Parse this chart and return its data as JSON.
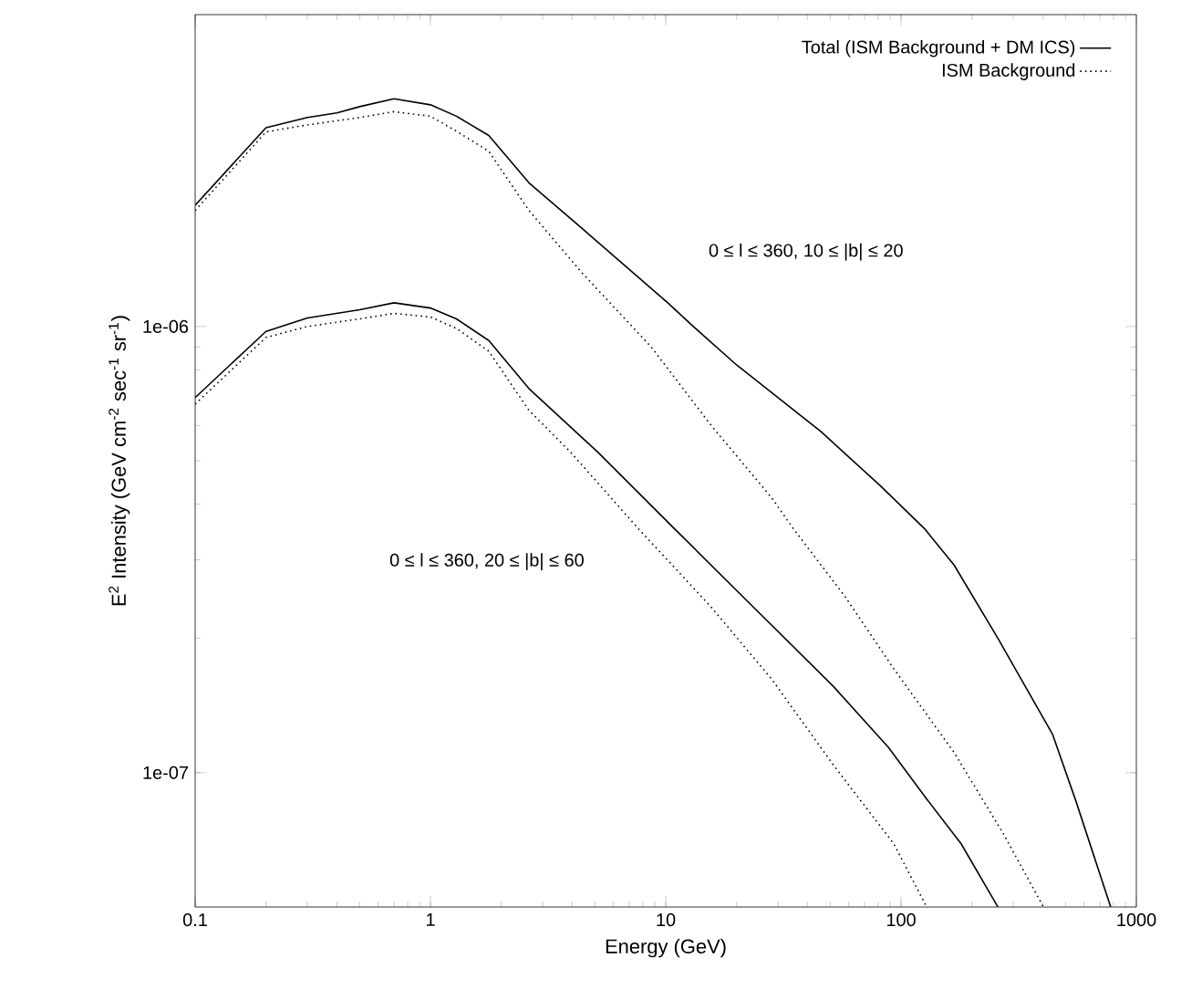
{
  "chart_data": {
    "type": "line",
    "xlabel": "Energy (GeV)",
    "ylabel": "E$^{2}$ Intensity (GeV cm$^{-2}$ sec$^{-1}$ sr$^{-1}$)",
    "log": "xy",
    "xlim": [
      0.1,
      1000
    ],
    "ylim": [
      5e-08,
      5e-06
    ],
    "xticks": [
      0.1,
      1,
      10,
      100,
      1000
    ],
    "yticks": [
      {
        "value": 1e-07,
        "label": "1e-07"
      },
      {
        "value": 1e-06,
        "label": "1e-06"
      }
    ],
    "legend": "top right",
    "grid": false,
    "marker": "none",
    "annotations": [
      "0 ≤ l ≤ 360, 10 ≤ |b| ≤ 20",
      "0 ≤ l ≤ 360, 20 ≤ |b| ≤ 60"
    ],
    "series": [
      {
        "name": "Total (ISM Background + DM ICS)",
        "color": "#000000",
        "line_style": "solid",
        "x": [
          0.1,
          0.2,
          0.3,
          0.4,
          0.5,
          0.7,
          1,
          1.29,
          1.77,
          2.62,
          4.4,
          10.2,
          13.1,
          20,
          45.6,
          82.2,
          126,
          168,
          258,
          440,
          555,
          778
        ],
        "values": [
          1.87e-06,
          2.79e-06,
          2.94e-06,
          3.01e-06,
          3.11e-06,
          3.24e-06,
          3.14e-06,
          2.96e-06,
          2.68e-06,
          2.1e-06,
          1.66e-06,
          1.13e-06,
          1e-06,
          8.2e-07,
          5.82e-07,
          4.38e-07,
          3.52e-07,
          2.92e-07,
          2e-07,
          1.22e-07,
          8.6e-08,
          5e-08
        ]
      },
      {
        "name": "ISM Background",
        "color": "#000000",
        "line_style": "dotted",
        "x": [
          0.1,
          0.2,
          0.3,
          0.5,
          0.7,
          1,
          1.29,
          1.77,
          2.62,
          4.4,
          8.67,
          15.6,
          28.2,
          34.9,
          57.5,
          93.1,
          168,
          272,
          403
        ],
        "values": [
          1.82e-06,
          2.73e-06,
          2.83e-06,
          2.94e-06,
          3.03e-06,
          2.96e-06,
          2.74e-06,
          2.47e-06,
          1.82e-06,
          1.32e-06,
          9e-07,
          6e-07,
          4.13e-07,
          3.52e-07,
          2.49e-07,
          1.71e-07,
          1.11e-07,
          7.3e-08,
          5e-08
        ]
      },
      {
        "color": "#000000",
        "line_style": "solid",
        "x": [
          0.1,
          0.2,
          0.3,
          0.5,
          0.7,
          1,
          1.29,
          1.77,
          2.62,
          5.16,
          10.9,
          28.2,
          51.6,
          88.3,
          126,
          180,
          258
        ],
        "values": [
          6.93e-07,
          9.75e-07,
          1.045e-06,
          1.09e-06,
          1.13e-06,
          1.1e-06,
          1.04e-06,
          9.3e-07,
          7.26e-07,
          5.22e-07,
          3.52e-07,
          2.14e-07,
          1.56e-07,
          1.14e-07,
          8.85e-08,
          6.93e-08,
          5e-08
        ]
      },
      {
        "color": "#000000",
        "line_style": "dotted",
        "x": [
          0.1,
          0.2,
          0.3,
          0.5,
          0.7,
          1,
          1.29,
          1.77,
          2.62,
          3.95,
          7.66,
          15.6,
          28.2,
          51.6,
          93.1,
          128.5
        ],
        "values": [
          6.7e-07,
          9.45e-07,
          1e-06,
          1.04e-06,
          1.07e-06,
          1.05e-06,
          9.9e-07,
          8.8e-07,
          6.49e-07,
          5.22e-07,
          3.52e-07,
          2.35e-07,
          1.62e-07,
          1.04e-07,
          6.93e-08,
          5e-08
        ]
      }
    ]
  }
}
